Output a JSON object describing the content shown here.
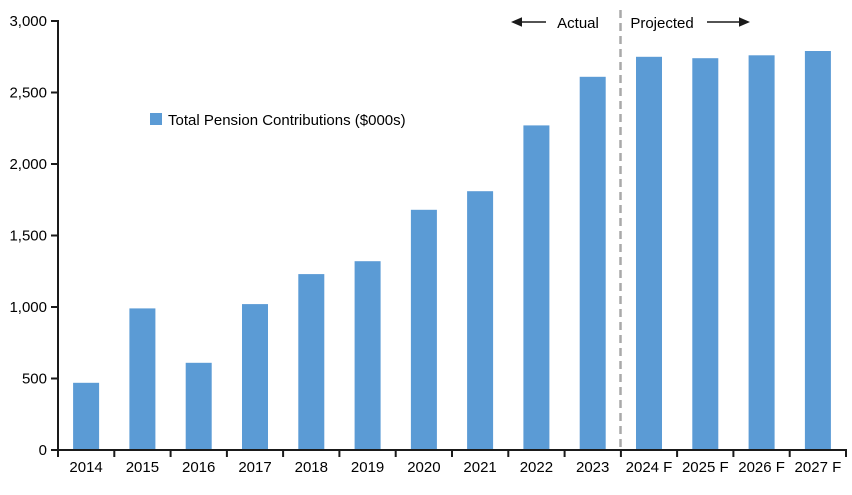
{
  "chart_data": {
    "type": "bar",
    "title": "",
    "legend": "Total Pension Contributions ($000s)",
    "categories": [
      "2014",
      "2015",
      "2016",
      "2017",
      "2018",
      "2019",
      "2020",
      "2021",
      "2022",
      "2023",
      "2024 F",
      "2025 F",
      "2026 F",
      "2027 F"
    ],
    "values": [
      470,
      990,
      610,
      1020,
      1230,
      1320,
      1680,
      1810,
      2270,
      2610,
      2750,
      2740,
      2760,
      2790
    ],
    "xlabel": "",
    "ylabel": "",
    "ylim": [
      0,
      3000
    ],
    "ytick_step": 500,
    "ytick_labels": [
      "0",
      "500",
      "1,000",
      "1,500",
      "2,000",
      "2,500",
      "3,000"
    ],
    "grid": false,
    "legend_position": "inside-upper-left",
    "annotations": {
      "actual_label": "Actual",
      "projected_label": "Projected",
      "divider_after_category": "2023"
    },
    "colors": {
      "bar": "#5B9BD5",
      "axis": "#1a1a1a",
      "divider": "#A9A9A9",
      "annotation_text": "#000000"
    }
  }
}
